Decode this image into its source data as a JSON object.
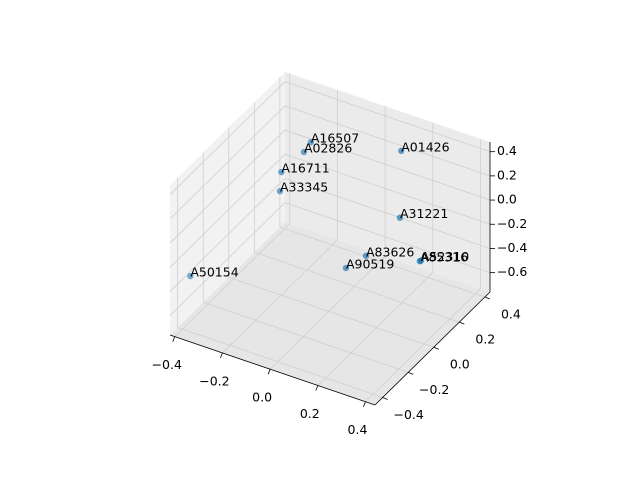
{
  "chart_data": {
    "type": "scatter3d",
    "color": "#1f77b4",
    "grid": true,
    "labels": [
      "A16507",
      "A02826",
      "A01426",
      "A16711",
      "A33345",
      "A31221",
      "A83626",
      "A85316",
      "A52310",
      "A90519",
      "A50154"
    ],
    "x": [
      -0.14,
      -0.155,
      0.073,
      -0.21,
      -0.2,
      0.116,
      0.035,
      0.266,
      0.268,
      -0.013,
      -0.34
    ],
    "y": [
      0.12,
      0.094,
      0.43,
      0.02,
      -0.01,
      0.34,
      0.225,
      0.216,
      0.22,
      0.158,
      -0.45
    ],
    "z": [
      0.42,
      0.356,
      0.17,
      0.23,
      0.11,
      -0.26,
      -0.51,
      -0.39,
      -0.388,
      -0.574,
      -0.23
    ],
    "xlim": [
      -0.42,
      0.44
    ],
    "ylim": [
      -0.46,
      0.44
    ],
    "zlim": [
      -0.76,
      0.48
    ],
    "xticks": [
      {
        "value": -0.4,
        "label": "−0.4"
      },
      {
        "value": -0.2,
        "label": "−0.2"
      },
      {
        "value": 0,
        "label": "0.0"
      },
      0.2,
      0.4
    ],
    "yticks": [
      {
        "value": -0.4,
        "label": "−0.4"
      },
      {
        "value": -0.2,
        "label": "−0.2"
      },
      {
        "value": 0,
        "label": "0.0"
      },
      0.2,
      0.4
    ],
    "zticks": [
      {
        "value": -0.6,
        "label": "−0.6"
      },
      {
        "value": -0.4,
        "label": "−0.4"
      },
      {
        "value": -0.2,
        "label": "−0.2"
      },
      {
        "value": 0,
        "label": "0.0"
      },
      0.2,
      0.4
    ]
  }
}
